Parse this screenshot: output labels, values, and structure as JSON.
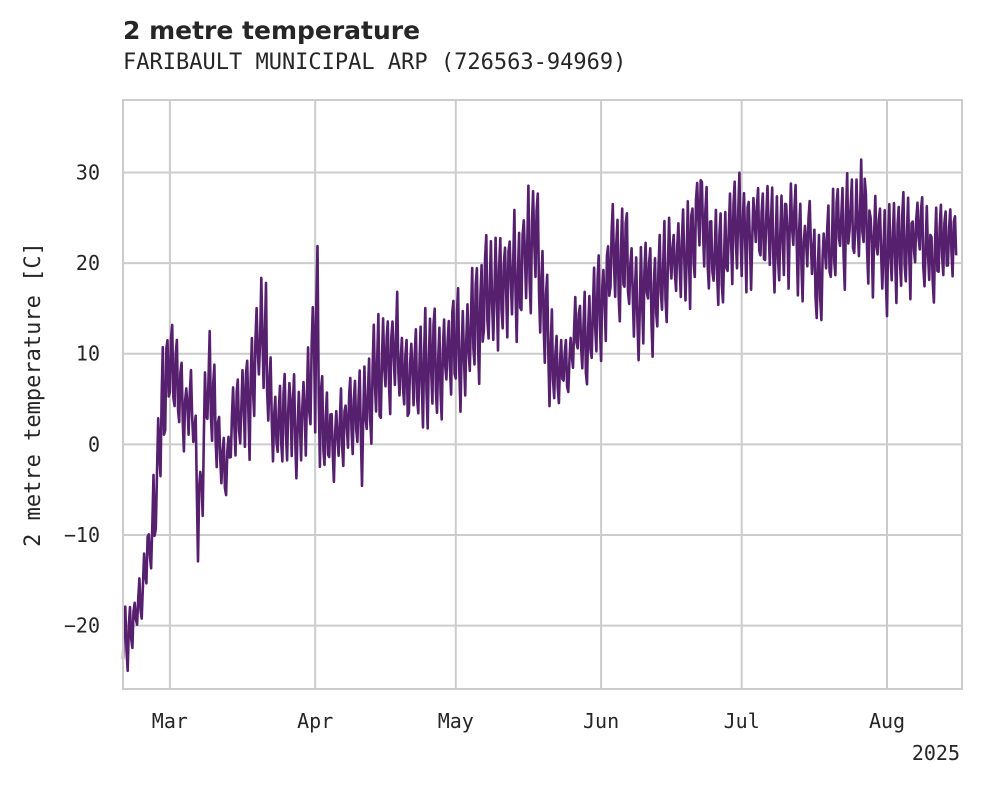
{
  "title": "2 metre temperature",
  "subtitle": "FARIBAULT MUNICIPAL ARP (726563-94969)",
  "chart_data": {
    "type": "line",
    "title": "2 metre temperature",
    "subtitle": "FARIBAULT MUNICIPAL ARP (726563-94969)",
    "xlabel": "",
    "ylabel": "2 metre temperature [C]",
    "year_label": "2025",
    "x_ticks": [
      {
        "label": "Mar",
        "date": "2025-03-01"
      },
      {
        "label": "Apr",
        "date": "2025-04-01"
      },
      {
        "label": "May",
        "date": "2025-05-01"
      },
      {
        "label": "Jun",
        "date": "2025-06-01"
      },
      {
        "label": "Jul",
        "date": "2025-07-01"
      },
      {
        "label": "Aug",
        "date": "2025-08-01"
      }
    ],
    "y_ticks": [
      -20,
      -10,
      0,
      10,
      20,
      30
    ],
    "xlim": [
      "2025-02-19",
      "2025-08-17"
    ],
    "ylim": [
      -27,
      38
    ],
    "grid": true,
    "series": [
      {
        "color": "#56206f",
        "points": [
          [
            "2025-02-19",
            -20
          ],
          [
            "2025-02-20",
            -22
          ],
          [
            "2025-02-21",
            -20
          ],
          [
            "2025-02-22",
            -18
          ],
          [
            "2025-02-23",
            -17
          ],
          [
            "2025-02-24",
            -13
          ],
          [
            "2025-02-25",
            -11
          ],
          [
            "2025-02-26",
            -6
          ],
          [
            "2025-02-27",
            3
          ],
          [
            "2025-02-28",
            6
          ],
          [
            "2025-03-01",
            9
          ],
          [
            "2025-03-02",
            8
          ],
          [
            "2025-03-03",
            6
          ],
          [
            "2025-03-04",
            3
          ],
          [
            "2025-03-05",
            5
          ],
          [
            "2025-03-06",
            4
          ],
          [
            "2025-03-07",
            -8
          ],
          [
            "2025-03-08",
            -3
          ],
          [
            "2025-03-09",
            8
          ],
          [
            "2025-03-10",
            5
          ],
          [
            "2025-03-11",
            2
          ],
          [
            "2025-03-12",
            -2
          ],
          [
            "2025-03-13",
            -3
          ],
          [
            "2025-03-14",
            1
          ],
          [
            "2025-03-15",
            3
          ],
          [
            "2025-03-16",
            4
          ],
          [
            "2025-03-17",
            5
          ],
          [
            "2025-03-18",
            4
          ],
          [
            "2025-03-19",
            8
          ],
          [
            "2025-03-20",
            11
          ],
          [
            "2025-03-21",
            13
          ],
          [
            "2025-03-22",
            6
          ],
          [
            "2025-03-23",
            3
          ],
          [
            "2025-03-24",
            2
          ],
          [
            "2025-03-25",
            4
          ],
          [
            "2025-03-26",
            3
          ],
          [
            "2025-03-27",
            5
          ],
          [
            "2025-03-28",
            1
          ],
          [
            "2025-03-29",
            3
          ],
          [
            "2025-03-30",
            4
          ],
          [
            "2025-03-31",
            8
          ],
          [
            "2025-04-01",
            14
          ],
          [
            "2025-04-02",
            3
          ],
          [
            "2025-04-03",
            2
          ],
          [
            "2025-04-04",
            1
          ],
          [
            "2025-04-05",
            0
          ],
          [
            "2025-04-06",
            2
          ],
          [
            "2025-04-07",
            1
          ],
          [
            "2025-04-08",
            3
          ],
          [
            "2025-04-09",
            2
          ],
          [
            "2025-04-10",
            4
          ],
          [
            "2025-04-11",
            1
          ],
          [
            "2025-04-12",
            5
          ],
          [
            "2025-04-13",
            7
          ],
          [
            "2025-04-14",
            9
          ],
          [
            "2025-04-15",
            6
          ],
          [
            "2025-04-16",
            10
          ],
          [
            "2025-04-17",
            8
          ],
          [
            "2025-04-18",
            12
          ],
          [
            "2025-04-19",
            9
          ],
          [
            "2025-04-20",
            7
          ],
          [
            "2025-04-21",
            6
          ],
          [
            "2025-04-22",
            10
          ],
          [
            "2025-04-23",
            8
          ],
          [
            "2025-04-24",
            9
          ],
          [
            "2025-04-25",
            7
          ],
          [
            "2025-04-26",
            11
          ],
          [
            "2025-04-27",
            8
          ],
          [
            "2025-04-28",
            9
          ],
          [
            "2025-04-29",
            11
          ],
          [
            "2025-04-30",
            10
          ],
          [
            "2025-05-01",
            12
          ],
          [
            "2025-05-02",
            9
          ],
          [
            "2025-05-03",
            10
          ],
          [
            "2025-05-04",
            13
          ],
          [
            "2025-05-05",
            14
          ],
          [
            "2025-05-06",
            12
          ],
          [
            "2025-05-07",
            16
          ],
          [
            "2025-05-08",
            18
          ],
          [
            "2025-05-09",
            15
          ],
          [
            "2025-05-10",
            17
          ],
          [
            "2025-05-11",
            19
          ],
          [
            "2025-05-12",
            16
          ],
          [
            "2025-05-13",
            20
          ],
          [
            "2025-05-14",
            18
          ],
          [
            "2025-05-15",
            19
          ],
          [
            "2025-05-16",
            22
          ],
          [
            "2025-05-17",
            21
          ],
          [
            "2025-05-18",
            24
          ],
          [
            "2025-05-19",
            18
          ],
          [
            "2025-05-20",
            15
          ],
          [
            "2025-05-21",
            10
          ],
          [
            "2025-05-22",
            8
          ],
          [
            "2025-05-23",
            7
          ],
          [
            "2025-05-24",
            9
          ],
          [
            "2025-05-25",
            8
          ],
          [
            "2025-05-26",
            11
          ],
          [
            "2025-05-27",
            14
          ],
          [
            "2025-05-28",
            12
          ],
          [
            "2025-05-29",
            10
          ],
          [
            "2025-05-30",
            13
          ],
          [
            "2025-05-31",
            16
          ],
          [
            "2025-06-01",
            14
          ],
          [
            "2025-06-02",
            17
          ],
          [
            "2025-06-03",
            20
          ],
          [
            "2025-06-04",
            22
          ],
          [
            "2025-06-05",
            18
          ],
          [
            "2025-06-06",
            21
          ],
          [
            "2025-06-07",
            19
          ],
          [
            "2025-06-08",
            16
          ],
          [
            "2025-06-09",
            14
          ],
          [
            "2025-06-10",
            17
          ],
          [
            "2025-06-11",
            19
          ],
          [
            "2025-06-12",
            15
          ],
          [
            "2025-06-13",
            18
          ],
          [
            "2025-06-14",
            20
          ],
          [
            "2025-06-15",
            19
          ],
          [
            "2025-06-16",
            21
          ],
          [
            "2025-06-17",
            20
          ],
          [
            "2025-06-18",
            22
          ],
          [
            "2025-06-19",
            20
          ],
          [
            "2025-06-20",
            21
          ],
          [
            "2025-06-21",
            24
          ],
          [
            "2025-06-22",
            27
          ],
          [
            "2025-06-23",
            25
          ],
          [
            "2025-06-24",
            22
          ],
          [
            "2025-06-25",
            21
          ],
          [
            "2025-06-26",
            20
          ],
          [
            "2025-06-27",
            19
          ],
          [
            "2025-06-28",
            22
          ],
          [
            "2025-06-29",
            23
          ],
          [
            "2025-06-30",
            24
          ],
          [
            "2025-07-01",
            25
          ],
          [
            "2025-07-02",
            23
          ],
          [
            "2025-07-03",
            22
          ],
          [
            "2025-07-04",
            26
          ],
          [
            "2025-07-05",
            24
          ],
          [
            "2025-07-06",
            23
          ],
          [
            "2025-07-07",
            25
          ],
          [
            "2025-07-08",
            22
          ],
          [
            "2025-07-09",
            21
          ],
          [
            "2025-07-10",
            24
          ],
          [
            "2025-07-11",
            23
          ],
          [
            "2025-07-12",
            25
          ],
          [
            "2025-07-13",
            22
          ],
          [
            "2025-07-14",
            20
          ],
          [
            "2025-07-15",
            23
          ],
          [
            "2025-07-16",
            22
          ],
          [
            "2025-07-17",
            18
          ],
          [
            "2025-07-18",
            19
          ],
          [
            "2025-07-19",
            22
          ],
          [
            "2025-07-20",
            21
          ],
          [
            "2025-07-21",
            24
          ],
          [
            "2025-07-22",
            25
          ],
          [
            "2025-07-23",
            23
          ],
          [
            "2025-07-24",
            26
          ],
          [
            "2025-07-25",
            24
          ],
          [
            "2025-07-26",
            25
          ],
          [
            "2025-07-27",
            27
          ],
          [
            "2025-07-28",
            23
          ],
          [
            "2025-07-29",
            22
          ],
          [
            "2025-07-30",
            24
          ],
          [
            "2025-07-31",
            21
          ],
          [
            "2025-08-01",
            20
          ],
          [
            "2025-08-02",
            22
          ],
          [
            "2025-08-03",
            21
          ],
          [
            "2025-08-04",
            23
          ],
          [
            "2025-08-05",
            22
          ],
          [
            "2025-08-06",
            21
          ],
          [
            "2025-08-07",
            23
          ],
          [
            "2025-08-08",
            24
          ],
          [
            "2025-08-09",
            22
          ],
          [
            "2025-08-10",
            21
          ],
          [
            "2025-08-11",
            20
          ],
          [
            "2025-08-12",
            22
          ],
          [
            "2025-08-13",
            21
          ],
          [
            "2025-08-14",
            23
          ],
          [
            "2025-08-15",
            22
          ],
          [
            "2025-08-16",
            21
          ]
        ],
        "daily_range_c": [
          7,
          6,
          6,
          5,
          5,
          8,
          10,
          12,
          14,
          12,
          10,
          9,
          8,
          8,
          8,
          9,
          9,
          12,
          12,
          9,
          8,
          7,
          6,
          9,
          9,
          10,
          10,
          10,
          12,
          12,
          14,
          10,
          10,
          10,
          10,
          10,
          11,
          10,
          11,
          11,
          14,
          24,
          10,
          8,
          8,
          8,
          9,
          9,
          9,
          9,
          10,
          10,
          12,
          12,
          12,
          10,
          12,
          11,
          12,
          11,
          10,
          10,
          11,
          11,
          12,
          10,
          12,
          11,
          11,
          12,
          12,
          12,
          11,
          12,
          12,
          13,
          12,
          13,
          12,
          13,
          12,
          13,
          13,
          13,
          12,
          12,
          12,
          12,
          13,
          12,
          12,
          10,
          8,
          6,
          6,
          6,
          7,
          7,
          10,
          10,
          10,
          10,
          10,
          10,
          10,
          10,
          12,
          12,
          11,
          11,
          11,
          11,
          10,
          10,
          11,
          11,
          10,
          10,
          11,
          11,
          11,
          11,
          10,
          10,
          10,
          10,
          11,
          11,
          10,
          10,
          10,
          10,
          11,
          11,
          11,
          10,
          10,
          10,
          10,
          10,
          10,
          10,
          10,
          10,
          10,
          10,
          10,
          10,
          10,
          9,
          9,
          10,
          10,
          10,
          10,
          10,
          10,
          10,
          10,
          10,
          10,
          10,
          10,
          10,
          10,
          10,
          10,
          10,
          9,
          9,
          9,
          9,
          9,
          9,
          9,
          9,
          9,
          9
        ]
      }
    ]
  }
}
